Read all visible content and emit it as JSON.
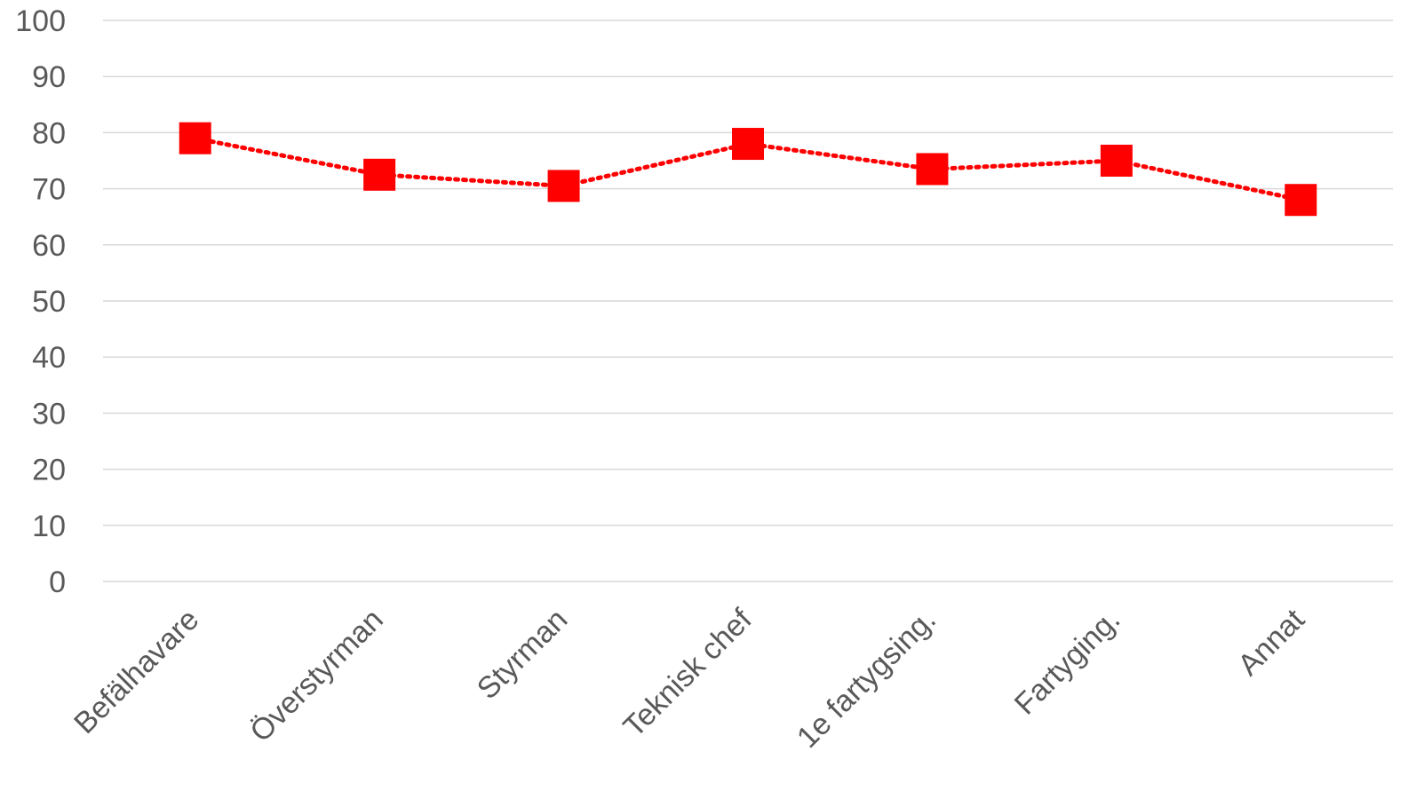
{
  "chart_data": {
    "type": "line",
    "title": "",
    "xlabel": "",
    "ylabel": "",
    "categories": [
      "Befälhavare",
      "Överstyrman",
      "Styrman",
      "Teknisk chef",
      "1e fartygsing.",
      "Fartyging.",
      "Annat"
    ],
    "series": [
      {
        "values": [
          79,
          72.5,
          70.5,
          78,
          73.5,
          75,
          68
        ],
        "color": "#ff0000",
        "marker": "square",
        "line_style": "dotted"
      }
    ],
    "ylim": [
      0,
      100
    ],
    "yticks": [
      0,
      10,
      20,
      30,
      40,
      50,
      60,
      70,
      80,
      90,
      100
    ],
    "grid": true,
    "legend": "none",
    "colors": {
      "gridline": "#d9d9d9",
      "tick_text": "#595959"
    }
  }
}
